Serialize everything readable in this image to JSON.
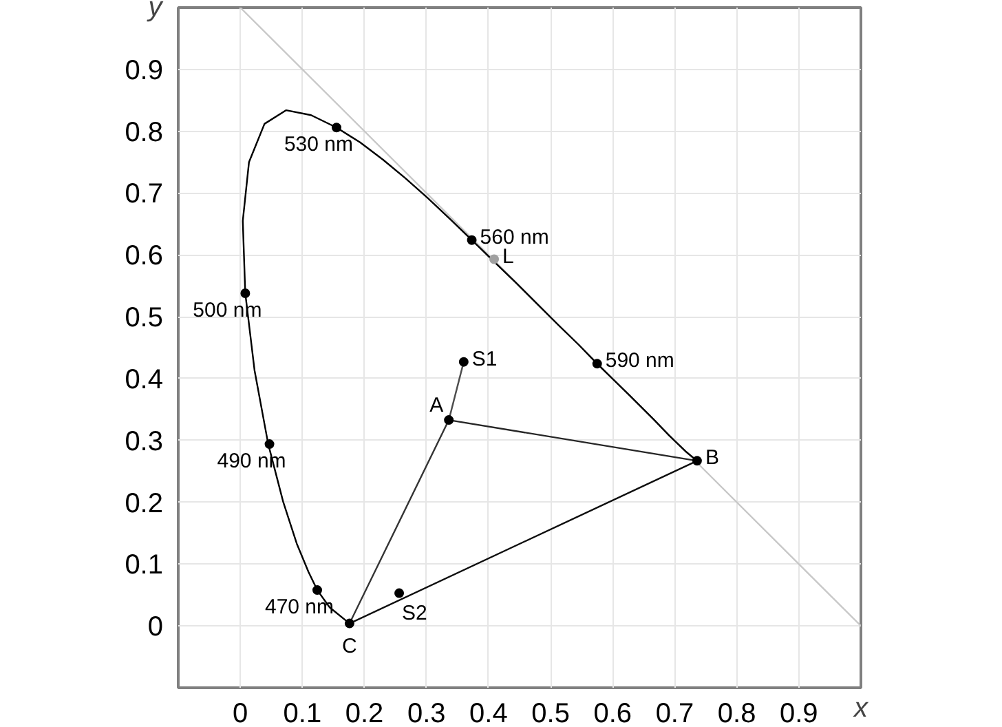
{
  "chart_data": {
    "type": "scatter",
    "xlabel": "x",
    "ylabel": "y",
    "xlim": [
      -0.1,
      1.0
    ],
    "ylim": [
      -0.1,
      1.0
    ],
    "xticks": [
      0,
      0.1,
      0.2,
      0.3,
      0.4,
      0.5,
      0.6,
      0.7,
      0.8,
      0.9
    ],
    "yticks": [
      0,
      0.1,
      0.2,
      0.3,
      0.4,
      0.5,
      0.6,
      0.7,
      0.8,
      0.9
    ],
    "grid": true,
    "marker": "circle",
    "series": [
      {
        "type": "line",
        "marker": "none",
        "color": "#c8c8c8",
        "x": [
          0,
          1.0
        ],
        "values": [
          1.0,
          0
        ]
      },
      {
        "type": "line",
        "marker": "none",
        "color": "#000000",
        "x": [
          0.176,
          0.144,
          0.124,
          0.11,
          0.091,
          0.069,
          0.045,
          0.023,
          0.008,
          0.004,
          0.014,
          0.039,
          0.074,
          0.114,
          0.155,
          0.193,
          0.23,
          0.266,
          0.302,
          0.337,
          0.373,
          0.409,
          0.444,
          0.479,
          0.512,
          0.545,
          0.575,
          0.627,
          0.666,
          0.691,
          0.719,
          0.736
        ],
        "values": [
          0.004,
          0.03,
          0.058,
          0.087,
          0.133,
          0.201,
          0.294,
          0.413,
          0.538,
          0.655,
          0.75,
          0.812,
          0.834,
          0.826,
          0.806,
          0.782,
          0.754,
          0.724,
          0.692,
          0.659,
          0.624,
          0.589,
          0.555,
          0.52,
          0.487,
          0.455,
          0.424,
          0.373,
          0.334,
          0.308,
          0.281,
          0.267
        ],
        "line_style": "solid"
      },
      {
        "type": "line",
        "marker": "none",
        "color": "#0d0d0d",
        "x": [
          0.736,
          0.176
        ],
        "values": [
          0.267,
          0.004
        ]
      },
      {
        "type": "line",
        "marker": "none",
        "color": "#262626",
        "x": [
          0.336,
          0.736
        ],
        "values": [
          0.333,
          0.267
        ]
      },
      {
        "type": "line",
        "marker": "none",
        "color": "#333333",
        "x": [
          0.336,
          0.176
        ],
        "values": [
          0.333,
          0.004
        ]
      },
      {
        "type": "line",
        "marker": "none",
        "color": "#4d4d4d",
        "x": [
          0.336,
          0.36
        ],
        "values": [
          0.333,
          0.427
        ]
      },
      {
        "color": "#000000",
        "x": [
          0.336,
          0.736,
          0.176,
          0.36,
          0.256,
          0.155,
          0.373,
          0.575,
          0.008,
          0.047,
          0.124
        ],
        "values": [
          0.333,
          0.267,
          0.004,
          0.427,
          0.053,
          0.806,
          0.624,
          0.424,
          0.538,
          0.294,
          0.058
        ]
      },
      {
        "color": "#a0a0a0",
        "x": [
          0.409
        ],
        "values": [
          0.593
        ]
      }
    ],
    "annotations": [
      {
        "text": "A",
        "x": 0.336,
        "y": 0.333
      },
      {
        "text": "B",
        "x": 0.736,
        "y": 0.267
      },
      {
        "text": "C",
        "x": 0.176,
        "y": 0.004
      },
      {
        "text": "S1",
        "x": 0.36,
        "y": 0.427
      },
      {
        "text": "S2",
        "x": 0.256,
        "y": 0.053
      },
      {
        "text": "L",
        "x": 0.409,
        "y": 0.593
      },
      {
        "text": "530 nm",
        "x": 0.155,
        "y": 0.806
      },
      {
        "text": "560 nm",
        "x": 0.373,
        "y": 0.624
      },
      {
        "text": "590 nm",
        "x": 0.575,
        "y": 0.424
      },
      {
        "text": "500 nm",
        "x": 0.008,
        "y": 0.538
      },
      {
        "text": "490 nm",
        "x": 0.047,
        "y": 0.294
      },
      {
        "text": "470 nm",
        "x": 0.124,
        "y": 0.058
      }
    ]
  }
}
